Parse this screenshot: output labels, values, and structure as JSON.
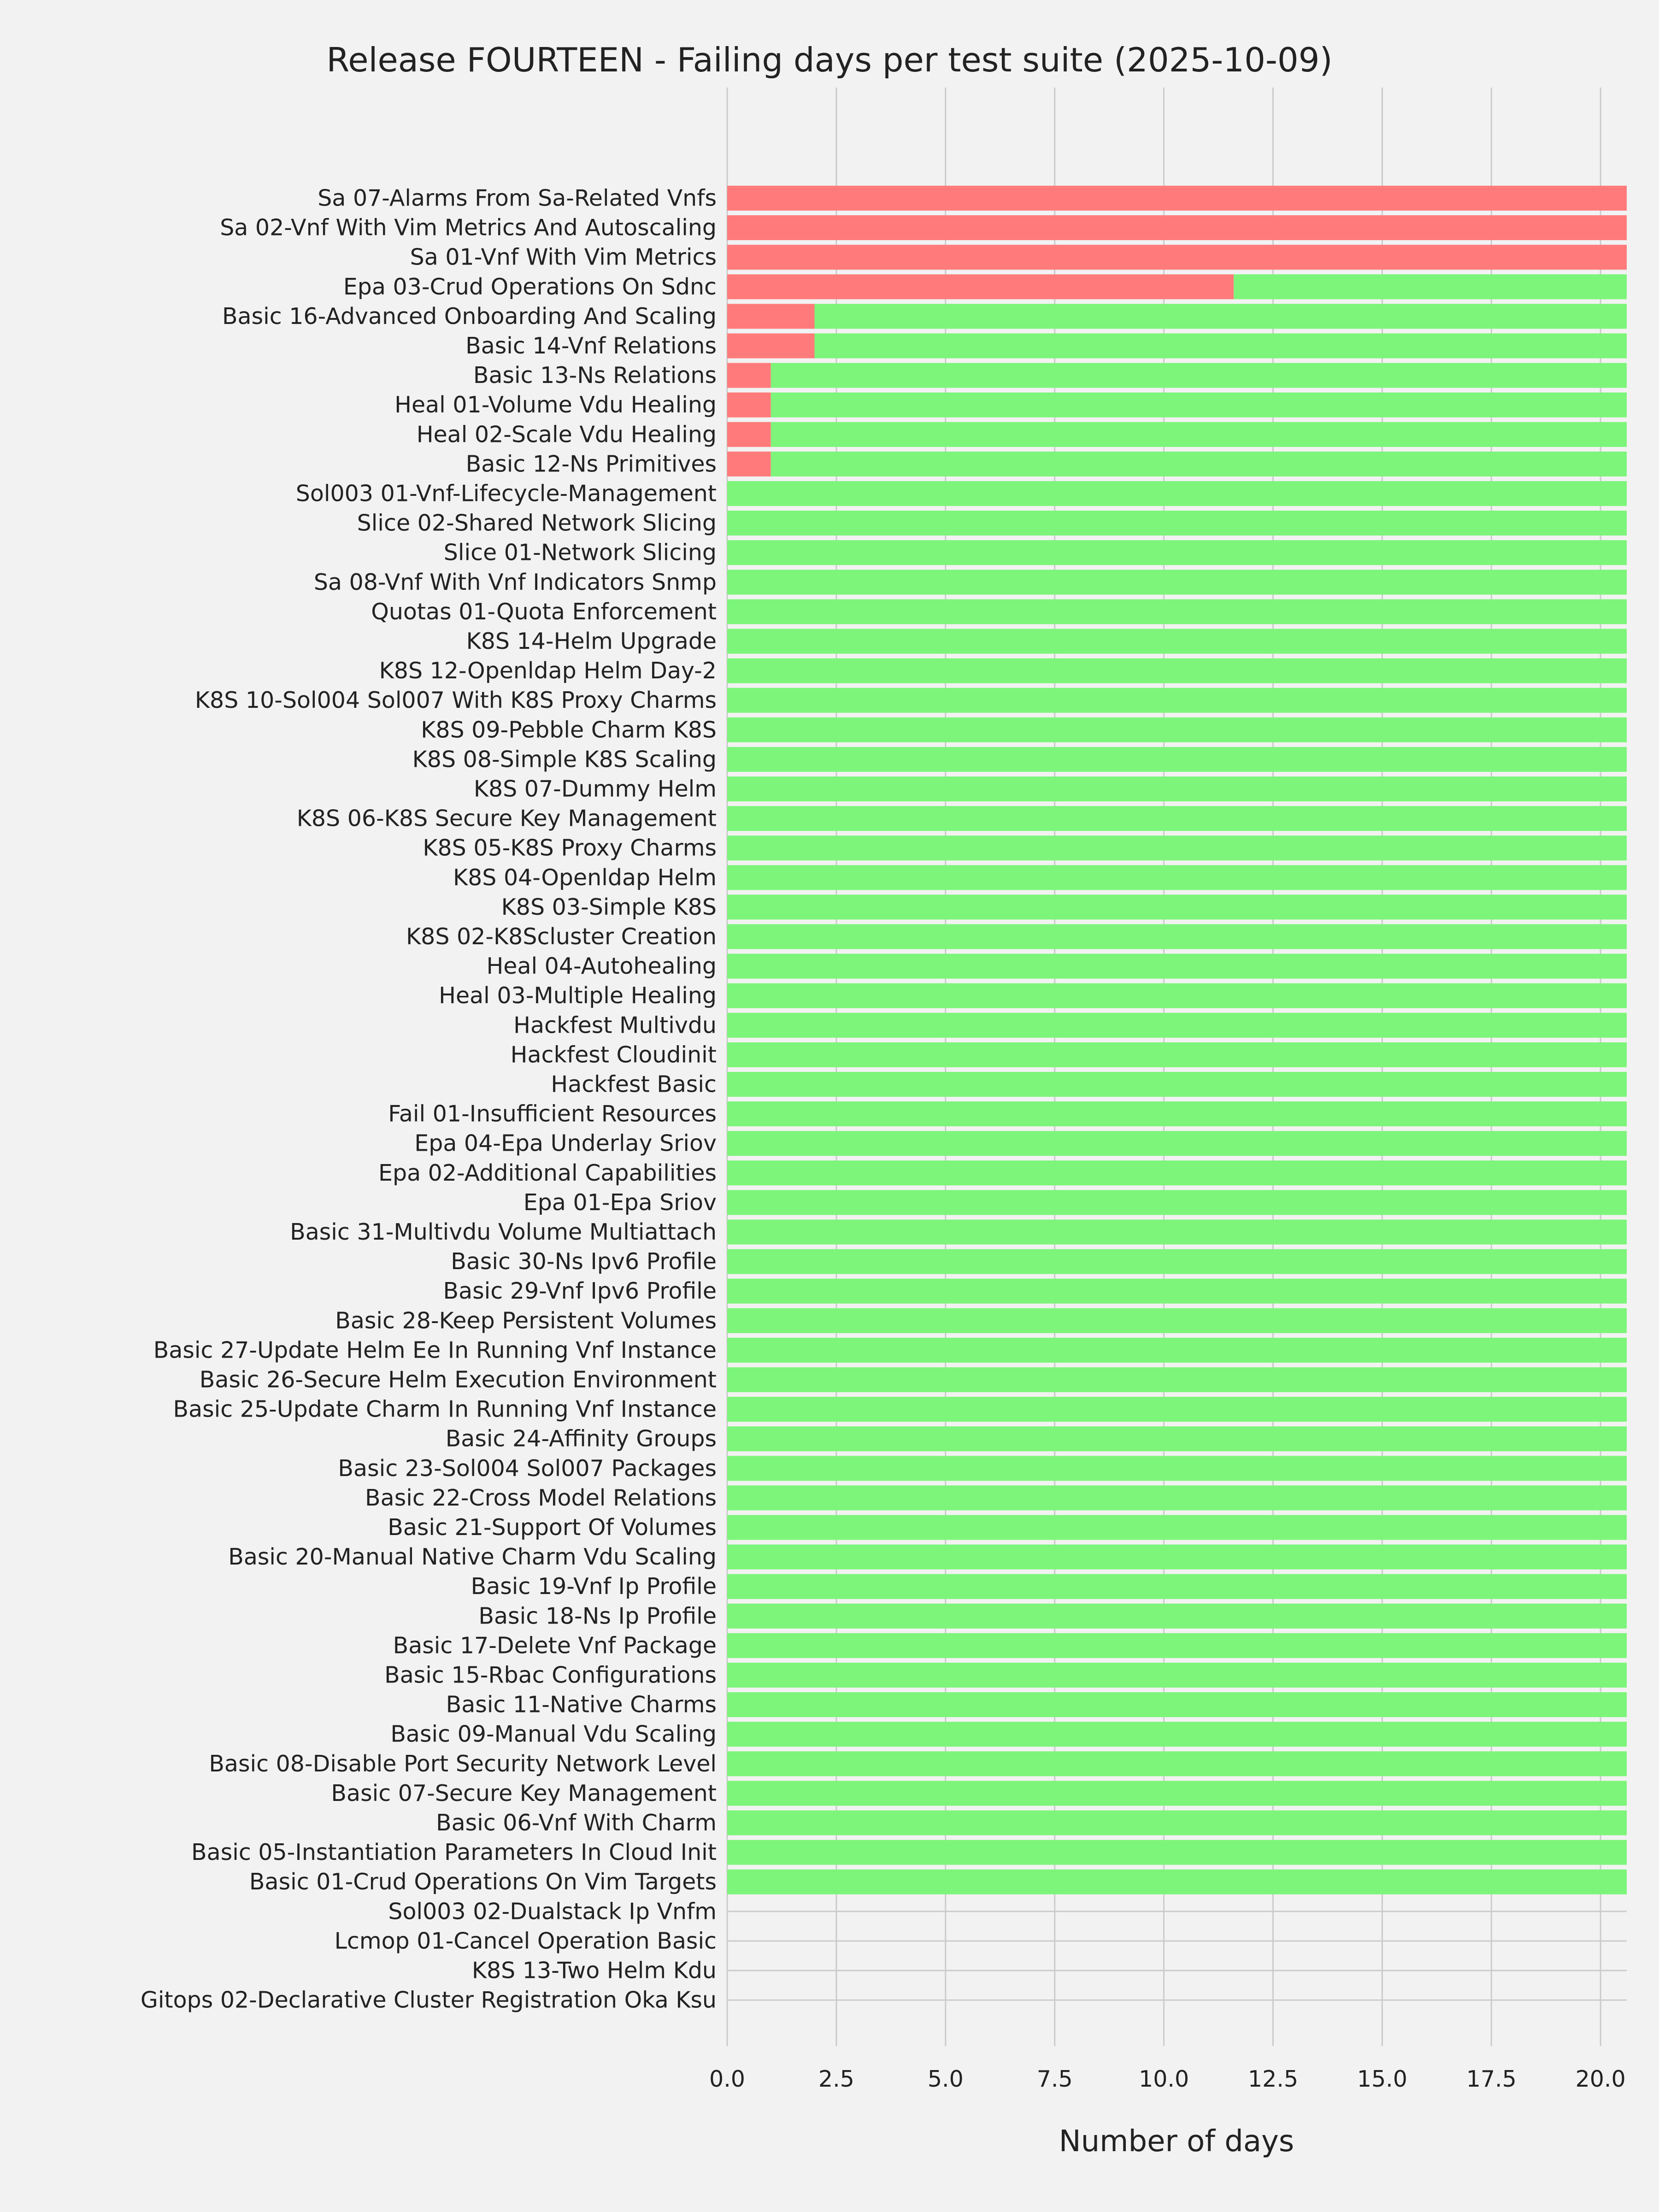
{
  "chart_data": {
    "type": "bar",
    "orientation": "horizontal",
    "stacked": true,
    "title": "Release FOURTEEN - Failing days per test suite (2025-10-09)",
    "xlabel": "Number of days",
    "ylabel": "",
    "xlim": [
      0,
      20.6
    ],
    "x_ticks": [
      "0.0",
      "2.5",
      "5.0",
      "7.5",
      "10.0",
      "12.5",
      "15.0",
      "17.5",
      "20.0"
    ],
    "grid": true,
    "legend": "none",
    "categories": [
      "Sa 07-Alarms From Sa-Related Vnfs",
      "Sa 02-Vnf With Vim Metrics And Autoscaling",
      "Sa 01-Vnf With Vim Metrics",
      "Epa 03-Crud Operations On Sdnc",
      "Basic 16-Advanced Onboarding And Scaling",
      "Basic 14-Vnf Relations",
      "Basic 13-Ns Relations",
      "Heal 01-Volume Vdu Healing",
      "Heal 02-Scale Vdu Healing",
      "Basic 12-Ns Primitives",
      "Sol003 01-Vnf-Lifecycle-Management",
      "Slice 02-Shared Network Slicing",
      "Slice 01-Network Slicing",
      "Sa 08-Vnf With Vnf Indicators Snmp",
      "Quotas 01-Quota Enforcement",
      "K8S 14-Helm Upgrade",
      "K8S 12-Openldap Helm Day-2",
      "K8S 10-Sol004 Sol007 With K8S Proxy Charms",
      "K8S 09-Pebble Charm K8S",
      "K8S 08-Simple K8S Scaling",
      "K8S 07-Dummy Helm",
      "K8S 06-K8S Secure Key Management",
      "K8S 05-K8S Proxy Charms",
      "K8S 04-Openldap Helm",
      "K8S 03-Simple K8S",
      "K8S 02-K8Scluster Creation",
      "Heal 04-Autohealing",
      "Heal 03-Multiple Healing",
      "Hackfest Multivdu",
      "Hackfest Cloudinit",
      "Hackfest Basic",
      "Fail 01-Insufficient Resources",
      "Epa 04-Epa Underlay Sriov",
      "Epa 02-Additional Capabilities",
      "Epa 01-Epa Sriov",
      "Basic 31-Multivdu Volume Multiattach",
      "Basic 30-Ns Ipv6 Profile",
      "Basic 29-Vnf Ipv6 Profile",
      "Basic 28-Keep Persistent Volumes",
      "Basic 27-Update Helm Ee In Running Vnf Instance",
      "Basic 26-Secure Helm Execution Environment",
      "Basic 25-Update Charm In Running Vnf Instance",
      "Basic 24-Affinity Groups",
      "Basic 23-Sol004 Sol007 Packages",
      "Basic 22-Cross Model Relations",
      "Basic 21-Support Of Volumes",
      "Basic 20-Manual Native Charm Vdu Scaling",
      "Basic 19-Vnf Ip Profile",
      "Basic 18-Ns Ip Profile",
      "Basic 17-Delete Vnf Package",
      "Basic 15-Rbac Configurations",
      "Basic 11-Native Charms",
      "Basic 09-Manual Vdu Scaling",
      "Basic 08-Disable Port Security Network Level",
      "Basic 07-Secure Key Management",
      "Basic 06-Vnf With Charm",
      "Basic 05-Instantiation Parameters In Cloud Init",
      "Basic 01-Crud Operations On Vim Targets",
      "Sol003 02-Dualstack Ip Vnfm",
      "Lcmop 01-Cancel Operation Basic",
      "K8S 13-Two Helm Kdu",
      "Gitops 02-Declarative Cluster Registration Oka Ksu"
    ],
    "series": [
      {
        "color": "#ff7b7b",
        "values": [
          20.6,
          20.6,
          20.6,
          11.6,
          2,
          2,
          1,
          1,
          1,
          1,
          0,
          0,
          0,
          0,
          0,
          0,
          0,
          0,
          0,
          0,
          0,
          0,
          0,
          0,
          0,
          0,
          0,
          0,
          0,
          0,
          0,
          0,
          0,
          0,
          0,
          0,
          0,
          0,
          0,
          0,
          0,
          0,
          0,
          0,
          0,
          0,
          0,
          0,
          0,
          0,
          0,
          0,
          0,
          0,
          0,
          0,
          0,
          0,
          0,
          0,
          0,
          0
        ]
      },
      {
        "color": "#7df57a",
        "values": [
          0,
          0,
          0,
          9.0,
          18.6,
          18.6,
          19.6,
          19.6,
          19.6,
          19.6,
          20.6,
          20.6,
          20.6,
          20.6,
          20.6,
          20.6,
          20.6,
          20.6,
          20.6,
          20.6,
          20.6,
          20.6,
          20.6,
          20.6,
          20.6,
          20.6,
          20.6,
          20.6,
          20.6,
          20.6,
          20.6,
          20.6,
          20.6,
          20.6,
          20.6,
          20.6,
          20.6,
          20.6,
          20.6,
          20.6,
          20.6,
          20.6,
          20.6,
          20.6,
          20.6,
          20.6,
          20.6,
          20.6,
          20.6,
          20.6,
          20.6,
          20.6,
          20.6,
          20.6,
          20.6,
          20.6,
          20.6,
          20.6,
          0,
          0,
          0,
          0
        ]
      }
    ]
  }
}
